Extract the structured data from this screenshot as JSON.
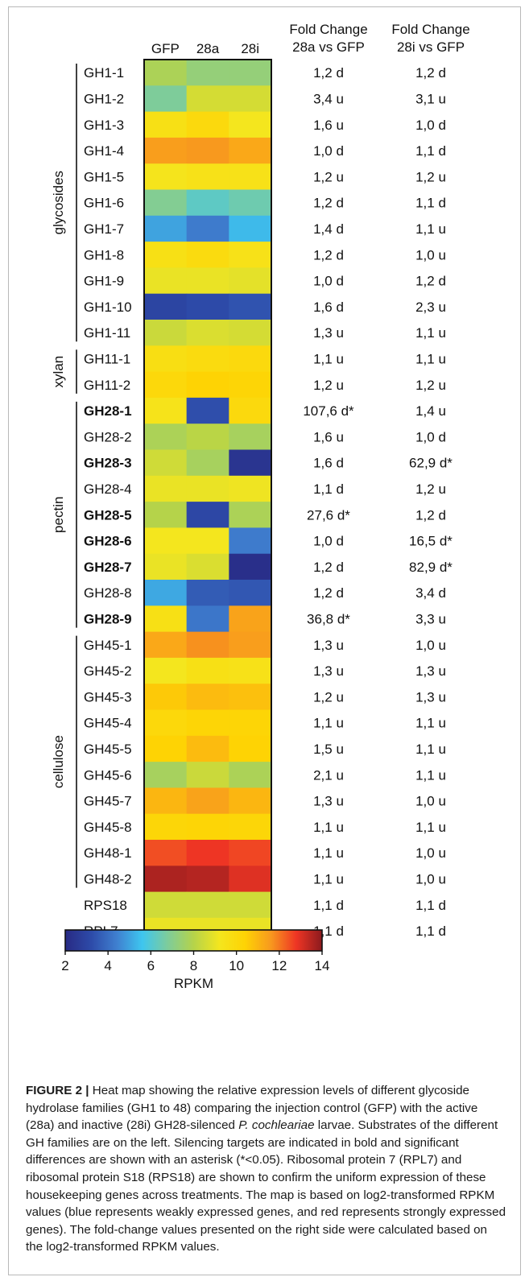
{
  "chart_data": {
    "type": "heatmap",
    "columns": [
      "GFP",
      "28a",
      "28i"
    ],
    "fold_headers": [
      {
        "line1": "Fold Change",
        "line2": "28a vs GFP"
      },
      {
        "line1": "Fold Change",
        "line2": "28i vs GFP"
      }
    ],
    "groups": [
      {
        "label": "glycosides",
        "start": 0,
        "end": 10
      },
      {
        "label": "xylan",
        "start": 11,
        "end": 12
      },
      {
        "label": "pectin",
        "start": 13,
        "end": 21
      },
      {
        "label": "cellulose",
        "start": 22,
        "end": 31
      }
    ],
    "rows": [
      {
        "gene": "GH1-1",
        "bold": false,
        "values": [
          7.8,
          7.3,
          7.3
        ],
        "fc_28a": "1,2 d",
        "fc_28i": "1,2 d"
      },
      {
        "gene": "GH1-2",
        "bold": false,
        "values": [
          6.8,
          8.6,
          8.6
        ],
        "fc_28a": "3,4 u",
        "fc_28i": "3,1 u"
      },
      {
        "gene": "GH1-3",
        "bold": false,
        "values": [
          9.6,
          10.0,
          9.2
        ],
        "fc_28a": "1,6 u",
        "fc_28i": "1,0 d"
      },
      {
        "gene": "GH1-4",
        "bold": false,
        "values": [
          11.5,
          11.6,
          11.3
        ],
        "fc_28a": "1,0 d",
        "fc_28i": "1,1 d"
      },
      {
        "gene": "GH1-5",
        "bold": false,
        "values": [
          9.3,
          9.5,
          9.5
        ],
        "fc_28a": "1,2 u",
        "fc_28i": "1,2 u"
      },
      {
        "gene": "GH1-6",
        "bold": false,
        "values": [
          6.9,
          6.2,
          6.5
        ],
        "fc_28a": "1,2 d",
        "fc_28i": "1,1 d"
      },
      {
        "gene": "GH1-7",
        "bold": false,
        "values": [
          5.0,
          4.3,
          5.4
        ],
        "fc_28a": "1,4 d",
        "fc_28i": "1,1 u"
      },
      {
        "gene": "GH1-8",
        "bold": false,
        "values": [
          9.6,
          9.9,
          9.5
        ],
        "fc_28a": "1,2 d",
        "fc_28i": "1,0 u"
      },
      {
        "gene": "GH1-9",
        "bold": false,
        "values": [
          9.0,
          9.0,
          8.9
        ],
        "fc_28a": "1,0 d",
        "fc_28i": "1,2 d"
      },
      {
        "gene": "GH1-10",
        "bold": false,
        "values": [
          3.0,
          3.2,
          3.4
        ],
        "fc_28a": "1,6 d",
        "fc_28i": "2,3 u"
      },
      {
        "gene": "GH1-11",
        "bold": false,
        "values": [
          8.4,
          8.7,
          8.6
        ],
        "fc_28a": "1,3 u",
        "fc_28i": "1,1 u"
      },
      {
        "gene": "GH11-1",
        "bold": false,
        "values": [
          9.7,
          9.9,
          10.0
        ],
        "fc_28a": "1,1 u",
        "fc_28i": "1,1 u"
      },
      {
        "gene": "GH11-2",
        "bold": false,
        "values": [
          10.1,
          10.4,
          10.3
        ],
        "fc_28a": "1,2 u",
        "fc_28i": "1,2 u"
      },
      {
        "gene": "GH28-1",
        "bold": true,
        "values": [
          9.4,
          3.3,
          10.0
        ],
        "fc_28a": "107,6 d*",
        "fc_28i": "1,4 u"
      },
      {
        "gene": "GH28-2",
        "bold": false,
        "values": [
          7.8,
          8.1,
          7.7
        ],
        "fc_28a": "1,6 u",
        "fc_28i": "1,0 d"
      },
      {
        "gene": "GH28-3",
        "bold": true,
        "values": [
          8.5,
          7.7,
          2.4
        ],
        "fc_28a": "1,6 d",
        "fc_28i": "62,9 d*"
      },
      {
        "gene": "GH28-4",
        "bold": false,
        "values": [
          9.0,
          9.0,
          9.1
        ],
        "fc_28a": "1,1 d",
        "fc_28i": "1,2 u"
      },
      {
        "gene": "GH28-5",
        "bold": true,
        "values": [
          8.0,
          3.1,
          7.8
        ],
        "fc_28a": "27,6 d*",
        "fc_28i": "1,2 d"
      },
      {
        "gene": "GH28-6",
        "bold": true,
        "values": [
          9.2,
          9.2,
          4.3
        ],
        "fc_28a": "1,0 d",
        "fc_28i": "16,5 d*"
      },
      {
        "gene": "GH28-7",
        "bold": true,
        "values": [
          9.0,
          8.7,
          2.2
        ],
        "fc_28a": "1,2 d",
        "fc_28i": "82,9 d*"
      },
      {
        "gene": "GH28-8",
        "bold": false,
        "values": [
          5.1,
          3.6,
          3.5
        ],
        "fc_28a": "1,2 d",
        "fc_28i": "3,4 d"
      },
      {
        "gene": "GH28-9",
        "bold": true,
        "values": [
          9.6,
          4.2,
          11.4
        ],
        "fc_28a": "36,8 d*",
        "fc_28i": "3,3 u"
      },
      {
        "gene": "GH45-1",
        "bold": false,
        "values": [
          11.3,
          11.7,
          11.5
        ],
        "fc_28a": "1,3 u",
        "fc_28i": "1,0 u"
      },
      {
        "gene": "GH45-2",
        "bold": false,
        "values": [
          9.2,
          9.6,
          9.5
        ],
        "fc_28a": "1,3 u",
        "fc_28i": "1,3 u"
      },
      {
        "gene": "GH45-3",
        "bold": false,
        "values": [
          10.6,
          10.9,
          10.8
        ],
        "fc_28a": "1,2 u",
        "fc_28i": "1,3 u"
      },
      {
        "gene": "GH45-4",
        "bold": false,
        "values": [
          10.1,
          10.3,
          10.3
        ],
        "fc_28a": "1,1 u",
        "fc_28i": "1,1 u"
      },
      {
        "gene": "GH45-5",
        "bold": false,
        "values": [
          10.4,
          10.9,
          10.4
        ],
        "fc_28a": "1,5 u",
        "fc_28i": "1,1 u"
      },
      {
        "gene": "GH45-6",
        "bold": false,
        "values": [
          7.7,
          8.4,
          7.8
        ],
        "fc_28a": "2,1 u",
        "fc_28i": "1,1 u"
      },
      {
        "gene": "GH45-7",
        "bold": false,
        "values": [
          11.0,
          11.4,
          11.0
        ],
        "fc_28a": "1,3 u",
        "fc_28i": "1,0 u"
      },
      {
        "gene": "GH45-8",
        "bold": false,
        "values": [
          10.2,
          10.3,
          10.2
        ],
        "fc_28a": "1,1 u",
        "fc_28i": "1,1 u"
      },
      {
        "gene": "GH48-1",
        "bold": false,
        "values": [
          12.5,
          12.8,
          12.6
        ],
        "fc_28a": "1,1 u",
        "fc_28i": "1,0 u"
      },
      {
        "gene": "GH48-2",
        "bold": false,
        "values": [
          13.6,
          13.5,
          13.0
        ],
        "fc_28a": "1,1 u",
        "fc_28i": "1,0 u"
      },
      {
        "gene": "RPS18",
        "bold": false,
        "values": [
          8.5,
          8.5,
          8.5
        ],
        "fc_28a": "1,1 d",
        "fc_28i": "1,1 d"
      },
      {
        "gene": "RPL7",
        "bold": false,
        "values": [
          9.0,
          9.0,
          9.0
        ],
        "fc_28a": "1,1 d",
        "fc_28i": "1,1 d"
      }
    ],
    "colorbar": {
      "min": 2,
      "max": 14,
      "ticks": [
        "2",
        "4",
        "6",
        "8",
        "10",
        "12",
        "14"
      ],
      "label": "RPKM",
      "stops": [
        "#282a84",
        "#2d4aa8",
        "#3f7fcf",
        "#3ec6ef",
        "#7ecc9a",
        "#b5d34a",
        "#f4e61e",
        "#fed304",
        "#f8991e",
        "#ee3524",
        "#8b1a1e"
      ]
    }
  },
  "caption": {
    "label": "FIGURE 2 |",
    "text_before_species": " Heat map showing the relative expression levels of different glycoside hydrolase families (GH1 to 48) comparing the injection control (GFP) with the active (28a) and inactive (28i) GH28-silenced ",
    "species": "P. cochleariae",
    "text_after_species": " larvae. Substrates of the different GH families are on the left. Silencing targets are indicated in bold and significant differences are shown with an asterisk (*<0.05). Ribosomal protein 7 (RPL7) and ribosomal protein S18 (RPS18) are shown to confirm the uniform expression of these housekeeping genes across treatments. The map is based on log2-transformed RPKM values (blue represents weakly expressed genes, and red represents strongly expressed genes). The fold-change values presented on the right side were calculated based on the log2-transformed RPKM values."
  }
}
